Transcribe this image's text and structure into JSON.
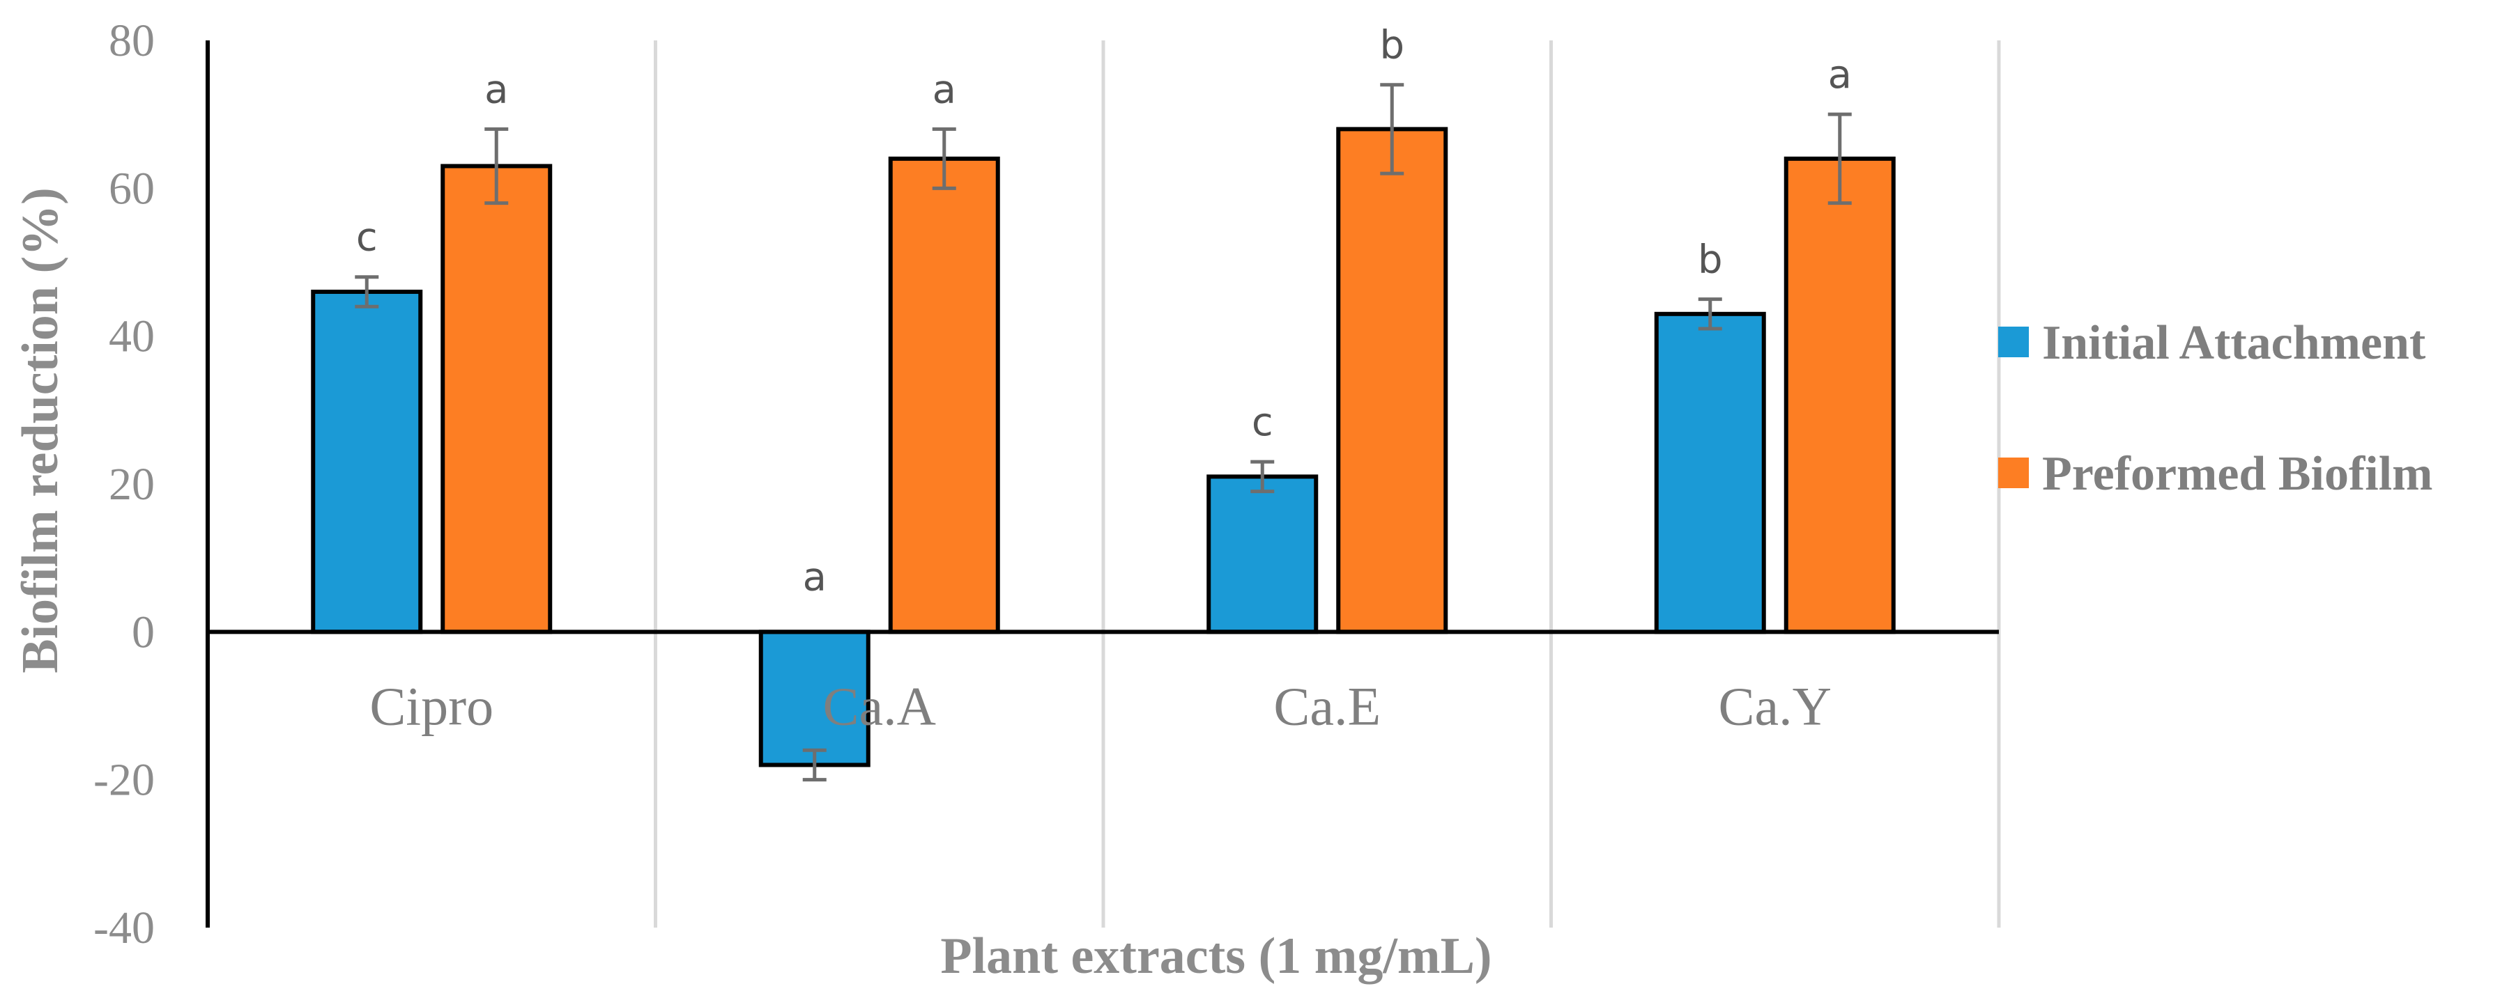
{
  "chart_data": {
    "type": "bar",
    "title": "",
    "xlabel": "Plant extracts (1 mg/mL)",
    "ylabel": "Biofilm reduction (%)",
    "ylim": [
      -40,
      80
    ],
    "yticks": [
      -40,
      -20,
      0,
      20,
      40,
      60,
      80
    ],
    "categories": [
      "Cipro",
      "Ca.A",
      "Ca.E",
      "Ca.Y"
    ],
    "legend_position": "right",
    "series": [
      {
        "name": "Initial Attachment",
        "color": "#1b9ad6",
        "values": [
          46,
          -18,
          21,
          43
        ],
        "errors": [
          2,
          2,
          2,
          2
        ],
        "labels": [
          "c",
          "a",
          "c",
          "b"
        ]
      },
      {
        "name": "Preformed Biofilm",
        "color": "#fd7e23",
        "values": [
          63,
          64,
          68,
          64
        ],
        "errors": [
          5,
          4,
          6,
          6
        ],
        "labels": [
          "a",
          "a",
          "b",
          "a"
        ]
      }
    ]
  }
}
